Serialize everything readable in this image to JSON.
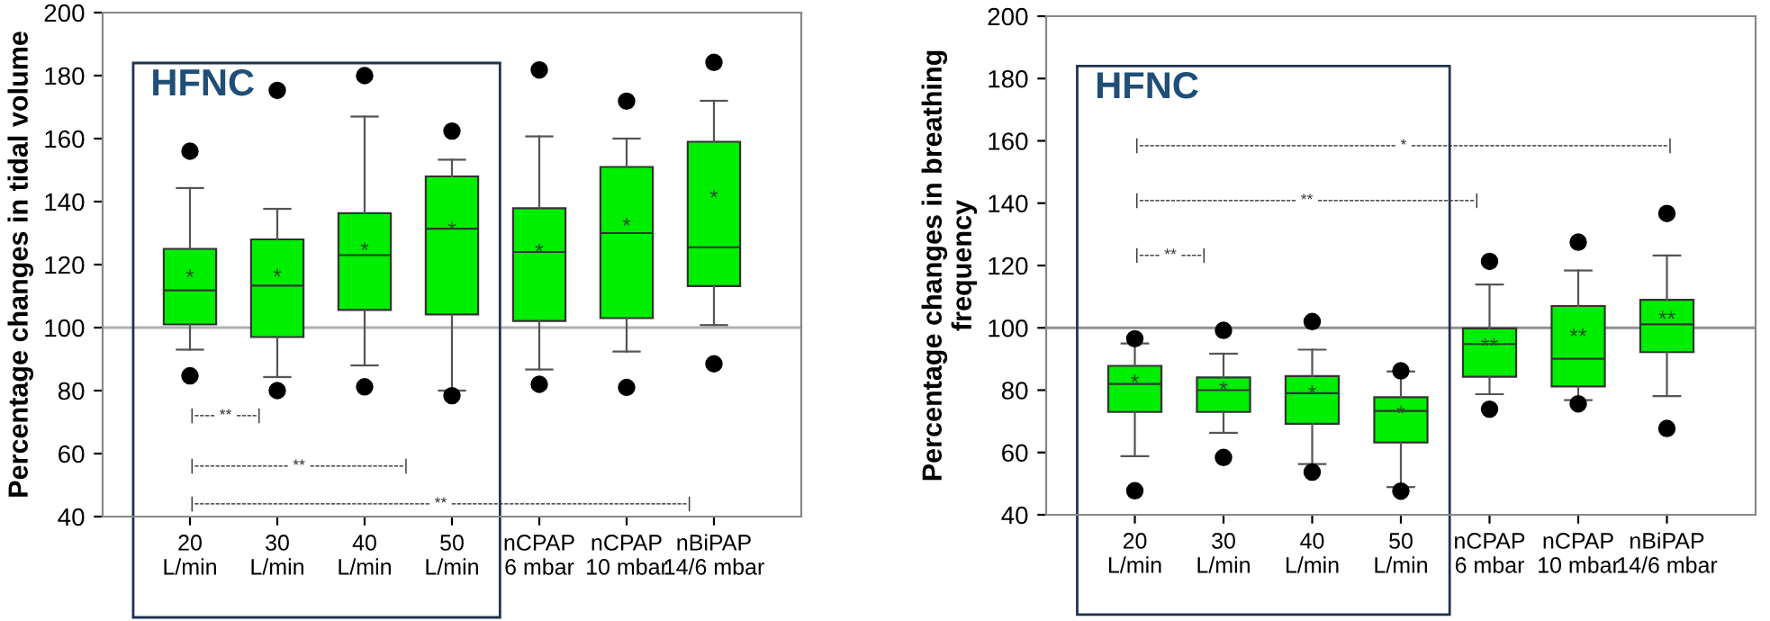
{
  "chart_data": [
    {
      "type": "box",
      "ylabel": "Percentage changes in tidal volume",
      "categories": [
        "20\nL/min",
        "30\nL/min",
        "40\nL/min",
        "50\nL/min",
        "nCPAP\n6 mbar",
        "nCPAP\n10 mbar",
        "nBiPAP\n14/6 mbar"
      ],
      "color": "#00ee00",
      "boxes": [
        {
          "low": 93,
          "q1": 101,
          "median": 111.8,
          "q3": 125,
          "high": 144.3,
          "outliers": [
            156,
            84.7
          ]
        },
        {
          "low": 84.3,
          "q1": 97,
          "median": 113.3,
          "q3": 128,
          "high": 137.7,
          "outliers": [
            175.3,
            80
          ]
        },
        {
          "low": 88,
          "q1": 105.6,
          "median": 123,
          "q3": 136.3,
          "high": 167,
          "outliers": [
            180,
            81.2
          ]
        },
        {
          "low": 80,
          "q1": 104.2,
          "median": 131.4,
          "q3": 148,
          "high": 153.3,
          "outliers": [
            162.4,
            78.4
          ]
        },
        {
          "low": 86.7,
          "q1": 102.1,
          "median": 124,
          "q3": 137.9,
          "high": 160.7,
          "outliers": [
            181.8,
            82
          ]
        },
        {
          "low": 92.4,
          "q1": 103,
          "median": 130,
          "q3": 151,
          "high": 160,
          "outliers": [
            171.9,
            81
          ]
        },
        {
          "low": 100.8,
          "q1": 113.2,
          "median": 125.5,
          "q3": 159,
          "high": 172,
          "outliers": [
            184.2,
            88.5
          ]
        }
      ],
      "ylim": [
        40,
        200
      ],
      "yticks": [
        40,
        60,
        80,
        100,
        120,
        140,
        160,
        180,
        200
      ],
      "grid": false,
      "ref_lines": [
        {
          "axis": "y",
          "value": 100,
          "color": "#b0b0b0"
        }
      ],
      "annotations": [
        "HFNC",
        "*",
        "*",
        "*",
        "*",
        "*",
        "*",
        "*",
        "|---- ** ----|",
        "|------------------ ** ------------------|",
        "|--------------------------------------------- ** ---------------------------------------------|"
      ]
    },
    {
      "type": "box",
      "ylabel": "Percentage changes in breathing\nfrequency",
      "categories": [
        "20\nL/min",
        "30\nL/min",
        "40\nL/min",
        "50\nL/min",
        "nCPAP\n6 mbar",
        "nCPAP\n10 mbar",
        "nBiPAP\n14/6 mbar"
      ],
      "color": "#00ee00",
      "boxes": [
        {
          "low": 58.8,
          "q1": 73,
          "median": 82,
          "q3": 87.8,
          "high": 95,
          "outliers": [
            96.5,
            47.7
          ]
        },
        {
          "low": 66.3,
          "q1": 73,
          "median": 80,
          "q3": 84.1,
          "high": 91.7,
          "outliers": [
            99.2,
            58.4
          ]
        },
        {
          "low": 56.3,
          "q1": 69.2,
          "median": 79,
          "q3": 84.5,
          "high": 93,
          "outliers": [
            102,
            53.7
          ]
        },
        {
          "low": 48.9,
          "q1": 63.2,
          "median": 73.3,
          "q3": 77.7,
          "high": 86,
          "outliers": [
            86.2,
            47.6
          ]
        },
        {
          "low": 78.7,
          "q1": 84.3,
          "median": 94.8,
          "q3": 99.8,
          "high": 113.9,
          "outliers": [
            121.3,
            73.9
          ]
        },
        {
          "low": 76.8,
          "q1": 81.2,
          "median": 90.1,
          "q3": 107,
          "high": 118.4,
          "outliers": [
            127.5,
            75.6
          ]
        },
        {
          "low": 78.1,
          "q1": 92.2,
          "median": 101.1,
          "q3": 109,
          "high": 123.2,
          "outliers": [
            136.7,
            67.7
          ]
        }
      ],
      "ylim": [
        40,
        200
      ],
      "yticks": [
        40,
        60,
        80,
        100,
        120,
        140,
        160,
        180,
        200
      ],
      "grid": false,
      "ref_lines": [
        {
          "axis": "y",
          "value": 100,
          "color": "#909090"
        }
      ],
      "annotations": [
        "HFNC",
        "*",
        "*",
        "*",
        "*",
        "**",
        "**",
        "**",
        "|------------------------------------------------- * -------------------------------------------------|",
        "|------------------------------ ** ------------------------------|",
        "|---- ** ----|"
      ]
    }
  ]
}
